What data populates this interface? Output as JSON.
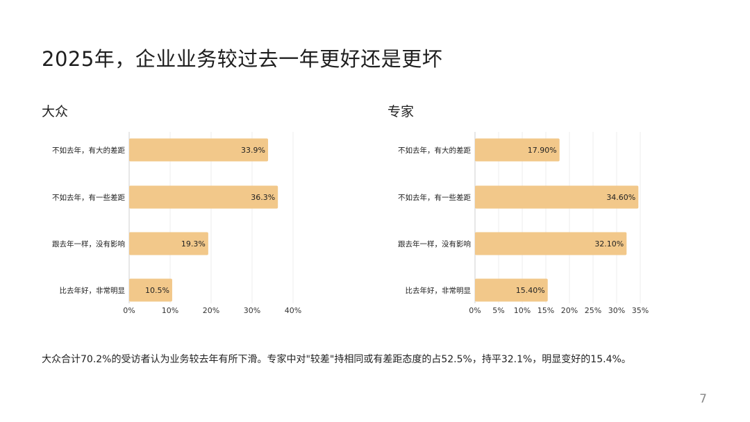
{
  "page": {
    "title": "2025年，企业业务较过去一年更好还是更坏",
    "footnote": "大众合计70.2%的受访者认为业务较去年有所下滑。专家中对\"较差\"持相同或有差距态度的占52.5%，持平32.1%，明显变好的15.4%。",
    "page_number": "7"
  },
  "colors": {
    "bar": "#F2C88A",
    "grid": "#ECECEC",
    "axis": "#CFCFCF"
  },
  "chart_data": [
    {
      "type": "bar",
      "orientation": "horizontal",
      "title": "大众",
      "categories": [
        "不如去年，有大的差距",
        "不如去年，有一些差距",
        "跟去年一样，没有影响",
        "比去年好，非常明显"
      ],
      "values": [
        33.9,
        36.3,
        19.3,
        10.5
      ],
      "value_labels": [
        "33.9%",
        "36.3%",
        "19.3%",
        "10.5%"
      ],
      "xlim": [
        0,
        40
      ],
      "xticks": [
        "0%",
        "10%",
        "20%",
        "30%",
        "40%"
      ],
      "grid": true
    },
    {
      "type": "bar",
      "orientation": "horizontal",
      "title": "专家",
      "categories": [
        "不如去年，有大的差距",
        "不如去年，有一些差距",
        "跟去年一样，没有影响",
        "比去年好，非常明显"
      ],
      "values": [
        17.9,
        34.6,
        32.1,
        15.4
      ],
      "value_labels": [
        "17.90%",
        "34.60%",
        "32.10%",
        "15.40%"
      ],
      "xlim": [
        0,
        35
      ],
      "xticks": [
        "0%",
        "5%",
        "10%",
        "15%",
        "20%",
        "25%",
        "30%",
        "35%"
      ],
      "grid": true
    }
  ]
}
